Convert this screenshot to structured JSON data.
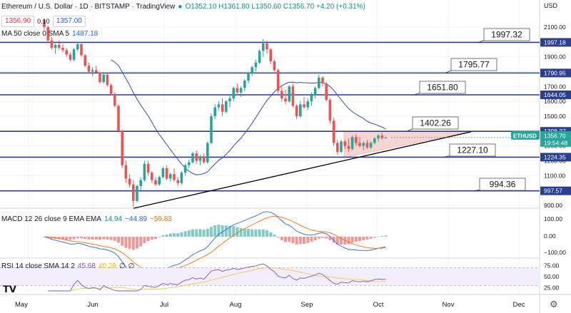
{
  "header": {
    "symbol": "Ethereum / U.S. Dollar · 1D · BITSTAMP · TradingView",
    "ohlc": "O1352.10 H1361.80 L1350.60 C1356.70 +4.20 (+0.31%)",
    "bid": "1356.90",
    "spread": "0.10",
    "ask": "1357.00",
    "currency": "USD",
    "ma_label": "MA 50 close 0 SMA 5",
    "ma_value": "1487.18"
  },
  "colors": {
    "up": "#26a69a",
    "down": "#ef5350",
    "level": "#2a3f8f",
    "ma": "#2f4fa8",
    "triangle": "#f8d4d4",
    "grid": "#f0f3fa"
  },
  "price_axis": {
    "ticks": [
      "2100.00",
      "2000.00",
      "1900.00",
      "1800.00",
      "1700.00",
      "1600.00",
      "1500.00",
      "1400.00",
      "1300.00",
      "1200.00",
      "1100.00",
      "1000.00",
      "900.00"
    ],
    "level_tags": [
      "1997.18",
      "1790.95",
      "1644.05",
      "1398.27",
      "1224.35",
      "997.57"
    ],
    "current_symbol": "ETHUSD",
    "current_price": "1356.70",
    "countdown": "19:54:48"
  },
  "callouts": [
    "1997.32",
    "1795.77",
    "1651.80",
    "1402.26",
    "1227.10",
    "994.36"
  ],
  "macd": {
    "label": "MACD 12 26 close 9 EMA EMA",
    "hist": "14.94",
    "macd": "−44.89",
    "signal": "−59.83",
    "ticks": [
      "100.00",
      "0.00",
      "−100.00"
    ]
  },
  "rsi": {
    "label": "RSI 14 close SMA 14 2",
    "rsi": "45.68",
    "sma": "40.29",
    "z1": "∅",
    "z2": "∅",
    "ticks": [
      "75.00",
      "50.00",
      "25.00"
    ]
  },
  "time_axis": [
    "May",
    "Jun",
    "Jul",
    "Aug",
    "Sep",
    "Oct",
    "Nov",
    "Dec"
  ],
  "chart_data": {
    "type": "candlestick",
    "price_range": [
      870,
      2150
    ],
    "horizontal_levels": [
      1997.18,
      1790.95,
      1644.05,
      1398.27,
      1224.35,
      997.57
    ],
    "trendline": [
      [
        0,
        880
      ],
      [
        95,
        1395
      ]
    ],
    "triangle_top": 1398.27,
    "candles": [
      [
        2150,
        2150,
        2080,
        2100
      ],
      [
        2100,
        2110,
        1990,
        2010
      ],
      [
        2010,
        2030,
        1950,
        1960
      ],
      [
        1960,
        1990,
        1920,
        1980
      ],
      [
        1980,
        2010,
        1950,
        1960
      ],
      [
        1960,
        1985,
        1930,
        1945
      ],
      [
        1945,
        1960,
        1900,
        1915
      ],
      [
        1915,
        1930,
        1870,
        1880
      ],
      [
        1880,
        1960,
        1870,
        1950
      ],
      [
        1950,
        2000,
        1935,
        1985
      ],
      [
        1985,
        1990,
        1900,
        1910
      ],
      [
        1910,
        1920,
        1830,
        1840
      ],
      [
        1840,
        1860,
        1790,
        1800
      ],
      [
        1800,
        1830,
        1770,
        1810
      ],
      [
        1810,
        1840,
        1790,
        1795
      ],
      [
        1795,
        1800,
        1720,
        1730
      ],
      [
        1730,
        1790,
        1720,
        1780
      ],
      [
        1780,
        1790,
        1700,
        1710
      ],
      [
        1710,
        1720,
        1640,
        1650
      ],
      [
        1650,
        1660,
        1560,
        1570
      ],
      [
        1570,
        1580,
        1390,
        1400
      ],
      [
        1400,
        1410,
        1150,
        1170
      ],
      [
        1170,
        1200,
        1050,
        1080
      ],
      [
        1080,
        1110,
        1020,
        1040
      ],
      [
        1040,
        1070,
        890,
        930
      ],
      [
        930,
        1040,
        920,
        1030
      ],
      [
        1030,
        1090,
        1000,
        1070
      ],
      [
        1070,
        1200,
        1060,
        1180
      ],
      [
        1180,
        1200,
        1100,
        1120
      ],
      [
        1120,
        1130,
        1050,
        1070
      ],
      [
        1070,
        1090,
        1030,
        1040
      ],
      [
        1040,
        1100,
        1030,
        1090
      ],
      [
        1090,
        1160,
        1080,
        1150
      ],
      [
        1150,
        1170,
        1070,
        1080
      ],
      [
        1080,
        1120,
        1060,
        1110
      ],
      [
        1110,
        1150,
        1060,
        1070
      ],
      [
        1070,
        1090,
        1030,
        1050
      ],
      [
        1050,
        1130,
        1040,
        1120
      ],
      [
        1120,
        1180,
        1100,
        1170
      ],
      [
        1170,
        1210,
        1150,
        1190
      ],
      [
        1190,
        1260,
        1180,
        1250
      ],
      [
        1250,
        1270,
        1180,
        1200
      ],
      [
        1200,
        1240,
        1170,
        1230
      ],
      [
        1230,
        1250,
        1180,
        1190
      ],
      [
        1190,
        1330,
        1180,
        1320
      ],
      [
        1320,
        1520,
        1310,
        1500
      ],
      [
        1500,
        1580,
        1480,
        1560
      ],
      [
        1560,
        1600,
        1540,
        1580
      ],
      [
        1580,
        1620,
        1500,
        1530
      ],
      [
        1530,
        1610,
        1520,
        1600
      ],
      [
        1600,
        1640,
        1560,
        1620
      ],
      [
        1620,
        1700,
        1600,
        1690
      ],
      [
        1690,
        1720,
        1650,
        1660
      ],
      [
        1660,
        1700,
        1630,
        1690
      ],
      [
        1690,
        1750,
        1670,
        1740
      ],
      [
        1740,
        1800,
        1720,
        1790
      ],
      [
        1790,
        1840,
        1770,
        1830
      ],
      [
        1830,
        1880,
        1800,
        1860
      ],
      [
        1860,
        1950,
        1850,
        1940
      ],
      [
        1940,
        2020,
        1900,
        1990
      ],
      [
        1990,
        2010,
        1920,
        1950
      ],
      [
        1950,
        1960,
        1850,
        1870
      ],
      [
        1870,
        1880,
        1800,
        1810
      ],
      [
        1810,
        1820,
        1650,
        1670
      ],
      [
        1670,
        1700,
        1600,
        1620
      ],
      [
        1620,
        1680,
        1580,
        1600
      ],
      [
        1600,
        1710,
        1590,
        1700
      ],
      [
        1700,
        1720,
        1560,
        1570
      ],
      [
        1570,
        1580,
        1480,
        1500
      ],
      [
        1500,
        1600,
        1490,
        1580
      ],
      [
        1580,
        1630,
        1550,
        1560
      ],
      [
        1560,
        1620,
        1540,
        1600
      ],
      [
        1600,
        1660,
        1570,
        1640
      ],
      [
        1640,
        1700,
        1620,
        1690
      ],
      [
        1690,
        1780,
        1680,
        1760
      ],
      [
        1760,
        1770,
        1700,
        1720
      ],
      [
        1720,
        1730,
        1600,
        1610
      ],
      [
        1610,
        1620,
        1450,
        1470
      ],
      [
        1470,
        1490,
        1300,
        1320
      ],
      [
        1320,
        1340,
        1240,
        1260
      ],
      [
        1260,
        1340,
        1250,
        1330
      ],
      [
        1330,
        1340,
        1280,
        1300
      ],
      [
        1300,
        1350,
        1260,
        1280
      ],
      [
        1280,
        1370,
        1270,
        1360
      ],
      [
        1360,
        1380,
        1300,
        1320
      ],
      [
        1320,
        1360,
        1290,
        1300
      ],
      [
        1300,
        1330,
        1270,
        1320
      ],
      [
        1320,
        1340,
        1280,
        1290
      ],
      [
        1290,
        1330,
        1280,
        1320
      ],
      [
        1320,
        1360,
        1310,
        1350
      ],
      [
        1350,
        1380,
        1330,
        1370
      ],
      [
        1370,
        1390,
        1340,
        1352
      ],
      [
        1352,
        1362,
        1350,
        1357
      ]
    ]
  }
}
